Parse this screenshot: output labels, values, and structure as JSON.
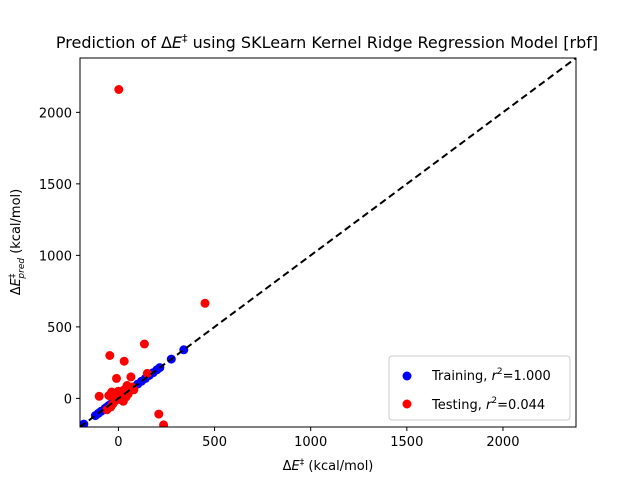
{
  "chart_data": {
    "type": "scatter",
    "title": "Prediction of ΔE‡ using SKLearn Kernel Ridge Regression Model [rbf]",
    "xlabel": "ΔE‡ (kcal/mol)",
    "ylabel": "ΔE‡pred (kcal/mol)",
    "xlim": [
      -200,
      2380
    ],
    "ylim": [
      -200,
      2380
    ],
    "xticks": [
      0,
      500,
      1000,
      1500,
      2000
    ],
    "yticks": [
      0,
      500,
      1000,
      1500,
      2000
    ],
    "grid": false,
    "legend_position": "lower-right",
    "identity_line": true,
    "series": [
      {
        "name": "Training, r²=1.000",
        "color": "#0000ff",
        "points": [
          [
            -180,
            -180
          ],
          [
            -120,
            -120
          ],
          [
            -105,
            -105
          ],
          [
            -90,
            -90
          ],
          [
            -70,
            -70
          ],
          [
            -60,
            -60
          ],
          [
            -50,
            -50
          ],
          [
            -40,
            -40
          ],
          [
            -30,
            -30
          ],
          [
            -20,
            -20
          ],
          [
            -10,
            -10
          ],
          [
            0,
            0
          ],
          [
            10,
            10
          ],
          [
            20,
            20
          ],
          [
            30,
            30
          ],
          [
            40,
            40
          ],
          [
            50,
            50
          ],
          [
            60,
            60
          ],
          [
            70,
            70
          ],
          [
            80,
            80
          ],
          [
            100,
            100
          ],
          [
            120,
            120
          ],
          [
            140,
            140
          ],
          [
            160,
            160
          ],
          [
            180,
            180
          ],
          [
            200,
            200
          ],
          [
            215,
            215
          ],
          [
            275,
            275
          ],
          [
            340,
            340
          ]
        ]
      },
      {
        "name": "Testing, r²=0.044",
        "color": "#ff0000",
        "points": [
          [
            2,
            2160
          ],
          [
            450,
            665
          ],
          [
            135,
            380
          ],
          [
            -45,
            300
          ],
          [
            30,
            260
          ],
          [
            65,
            150
          ],
          [
            -10,
            140
          ],
          [
            150,
            175
          ],
          [
            -100,
            15
          ],
          [
            -60,
            -80
          ],
          [
            -40,
            -60
          ],
          [
            -30,
            -40
          ],
          [
            -20,
            -20
          ],
          [
            -25,
            10
          ],
          [
            -15,
            30
          ],
          [
            0,
            50
          ],
          [
            10,
            20
          ],
          [
            20,
            40
          ],
          [
            30,
            60
          ],
          [
            15,
            -10
          ],
          [
            40,
            10
          ],
          [
            50,
            30
          ],
          [
            60,
            55
          ],
          [
            -5,
            -5
          ],
          [
            5,
            15
          ],
          [
            25,
            -20
          ],
          [
            70,
            80
          ],
          [
            -50,
            20
          ],
          [
            -35,
            45
          ],
          [
            210,
            -110
          ],
          [
            235,
            -185
          ],
          [
            45,
            90
          ],
          [
            80,
            60
          ]
        ]
      }
    ],
    "legend": [
      {
        "label_prefix": "Training, ",
        "label_r": "r",
        "label_sup": "2",
        "label_suffix": "=1.000"
      },
      {
        "label_prefix": "Testing, ",
        "label_r": "r",
        "label_sup": "2",
        "label_suffix": "=0.044"
      }
    ]
  }
}
